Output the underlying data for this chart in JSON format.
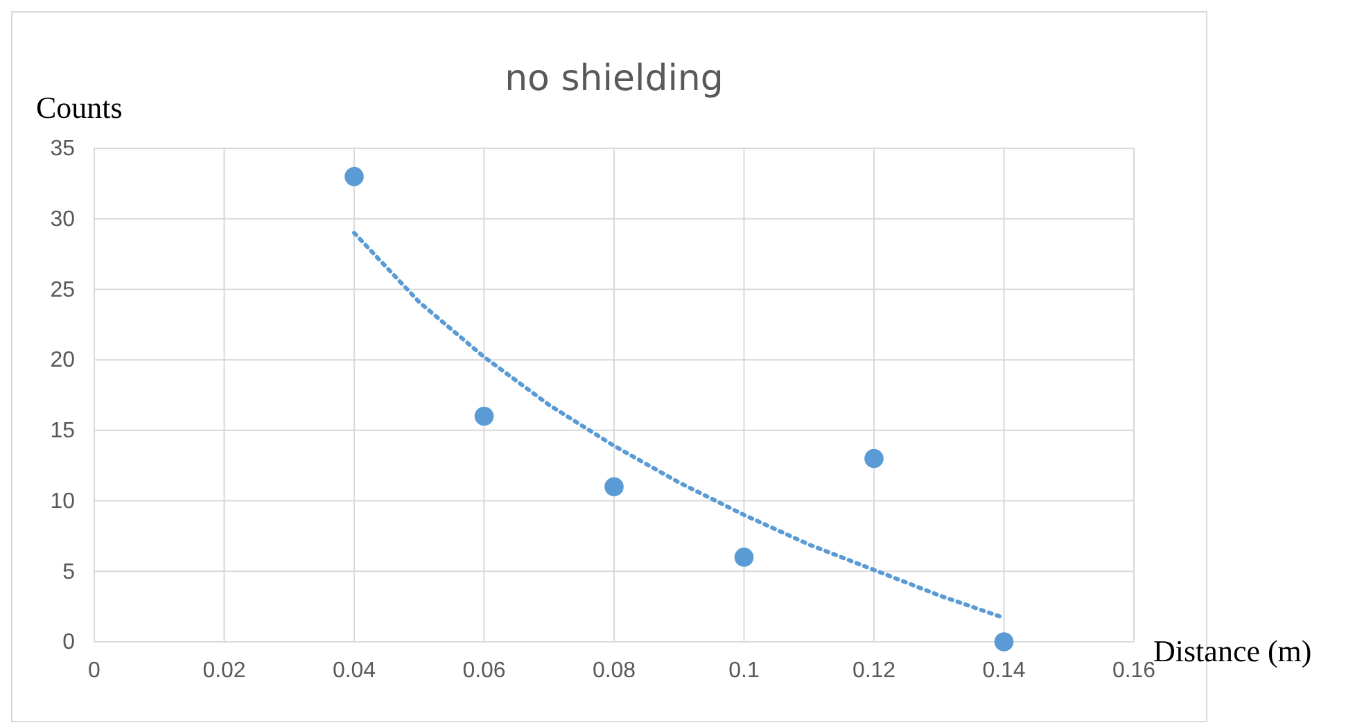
{
  "chart_data": {
    "type": "scatter",
    "title": "no shielding",
    "xlabel": "Distance (m)",
    "ylabel": "Counts",
    "xlim": [
      0,
      0.16
    ],
    "xticks": [
      0,
      0.02,
      0.04,
      0.06,
      0.08,
      0.1,
      0.12,
      0.14,
      0.16
    ],
    "ylim": [
      0,
      35
    ],
    "yticks": [
      0,
      5,
      10,
      15,
      20,
      25,
      30,
      35
    ],
    "grid": true,
    "marker": "circle",
    "series": [
      {
        "type": "scatter",
        "color": "#5b9bd5",
        "x": [
          0.04,
          0.06,
          0.08,
          0.1,
          0.12,
          0.14
        ],
        "values": [
          33,
          16,
          11,
          6,
          13,
          0
        ]
      },
      {
        "type": "line",
        "color": "#5b9bd5",
        "line_style": "dotted",
        "marker": "none",
        "x": [
          0.04,
          0.05,
          0.06,
          0.07,
          0.08,
          0.09,
          0.1,
          0.11,
          0.12,
          0.13,
          0.14
        ],
        "values": [
          29.0,
          24.1,
          20.2,
          16.8,
          13.9,
          11.3,
          9.0,
          6.9,
          5.1,
          3.3,
          1.7
        ]
      }
    ]
  }
}
